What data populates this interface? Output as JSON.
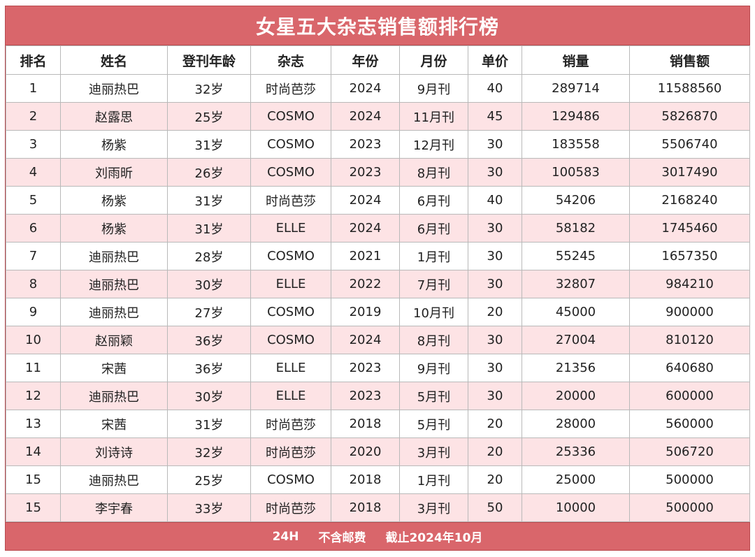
{
  "title": "女星五大杂志销售额排行榜",
  "columns": [
    "排名",
    "姓名",
    "登刊年龄",
    "杂志",
    "年份",
    "月份",
    "单价",
    "销量",
    "销售额"
  ],
  "rows": [
    [
      "1",
      "迪丽热巴",
      "32岁",
      "时尚芭莎",
      "2024",
      "9月刊",
      "40",
      "289714",
      "11588560"
    ],
    [
      "2",
      "赵露思",
      "25岁",
      "COSMO",
      "2024",
      "11月刊",
      "45",
      "129486",
      "5826870"
    ],
    [
      "3",
      "杨紫",
      "31岁",
      "COSMO",
      "2023",
      "12月刊",
      "30",
      "183558",
      "5506740"
    ],
    [
      "4",
      "刘雨昕",
      "26岁",
      "COSMO",
      "2023",
      "8月刊",
      "30",
      "100583",
      "3017490"
    ],
    [
      "5",
      "杨紫",
      "31岁",
      "时尚芭莎",
      "2024",
      "6月刊",
      "40",
      "54206",
      "2168240"
    ],
    [
      "6",
      "杨紫",
      "31岁",
      "ELLE",
      "2024",
      "6月刊",
      "30",
      "58182",
      "1745460"
    ],
    [
      "7",
      "迪丽热巴",
      "28岁",
      "COSMO",
      "2021",
      "1月刊",
      "30",
      "55245",
      "1657350"
    ],
    [
      "8",
      "迪丽热巴",
      "30岁",
      "ELLE",
      "2022",
      "7月刊",
      "30",
      "32807",
      "984210"
    ],
    [
      "9",
      "迪丽热巴",
      "27岁",
      "COSMO",
      "2019",
      "10月刊",
      "20",
      "45000",
      "900000"
    ],
    [
      "10",
      "赵丽颖",
      "36岁",
      "COSMO",
      "2024",
      "8月刊",
      "30",
      "27004",
      "810120"
    ],
    [
      "11",
      "宋茜",
      "36岁",
      "ELLE",
      "2023",
      "9月刊",
      "30",
      "21356",
      "640680"
    ],
    [
      "12",
      "迪丽热巴",
      "30岁",
      "ELLE",
      "2023",
      "5月刊",
      "30",
      "20000",
      "600000"
    ],
    [
      "13",
      "宋茜",
      "31岁",
      "时尚芭莎",
      "2018",
      "5月刊",
      "20",
      "28000",
      "560000"
    ],
    [
      "14",
      "刘诗诗",
      "32岁",
      "时尚芭莎",
      "2020",
      "3月刊",
      "20",
      "25336",
      "506720"
    ],
    [
      "15",
      "迪丽热巴",
      "25岁",
      "COSMO",
      "2018",
      "1月刊",
      "20",
      "25000",
      "500000"
    ],
    [
      "15",
      "李宇春",
      "33岁",
      "时尚芭莎",
      "2018",
      "3月刊",
      "50",
      "10000",
      "500000"
    ]
  ],
  "footer": [
    "24H",
    "不含邮费",
    "截止2024年10月"
  ],
  "colors": {
    "accent": "#d9666b",
    "row_alt": "#fde3e5"
  }
}
